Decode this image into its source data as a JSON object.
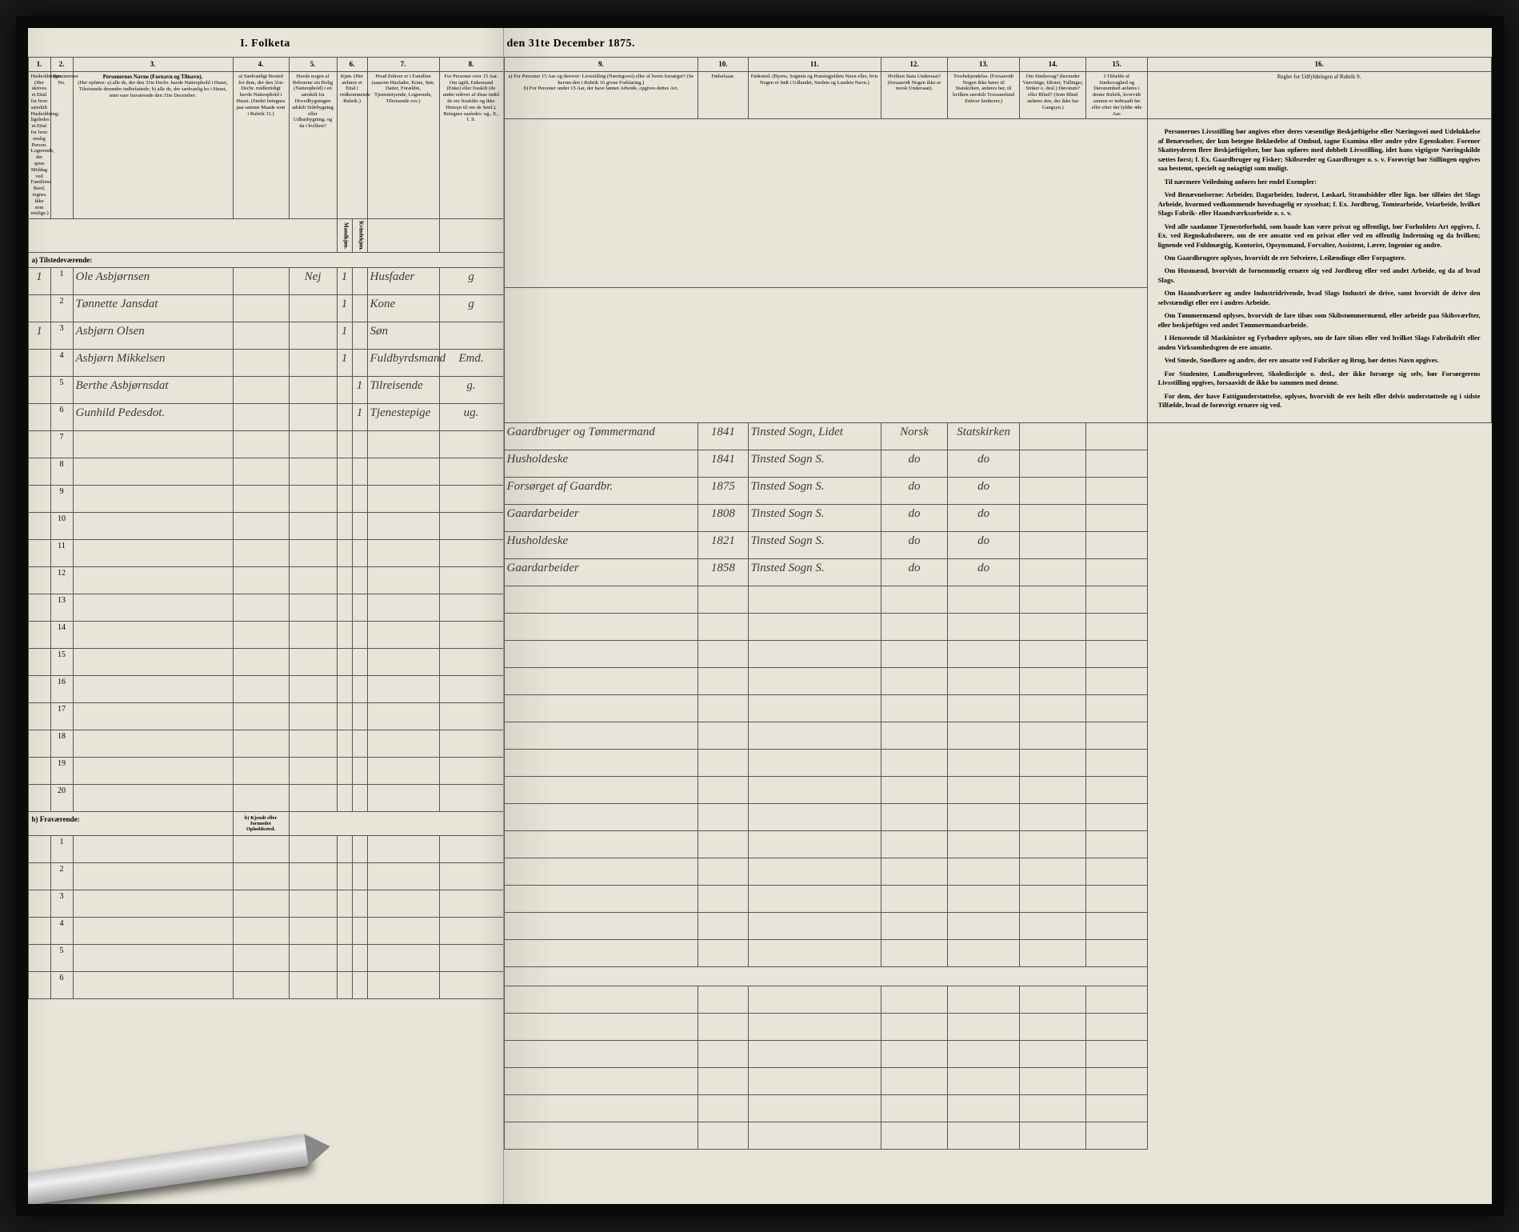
{
  "title_left": "I. Folketa",
  "title_right": "den 31te December 1875.",
  "columns": {
    "c1": "1.",
    "c2": "2.",
    "c3": "3.",
    "c4": "4.",
    "c5": "5.",
    "c6": "6.",
    "c7": "7.",
    "c8": "8.",
    "c9": "9.",
    "c10": "10.",
    "c11": "11.",
    "c12": "12.",
    "c13": "13.",
    "c14": "14.",
    "c15": "15.",
    "c16": "16."
  },
  "headers": {
    "h1": "Husholdninger. (Her skrives et Ettal for hver særskilt Husholdning; ligeledes et Ettal for hver enslig Person. Logerende, der spise Middag ved Familiens Bord, regnes ikke som enslige.)",
    "h2": "Personernes No.",
    "h3_title": "Personernes Navne (Fornavn og Tilnavn).",
    "h3_sub": "(Her opføres: a) alle de, der den 31te Decbr. havde Natteophold i Huset, Tilreisende derunder indbefattede; b) alle de, der sædvanlig bo i Huset, men vare fraværende den 31te December.",
    "h4": "a) Sædvanligt Bosted for dem, der den 31te Decbr. midlertidigt havde Natteophold i Huset. (Stedet betegnes paa samme Maade som i Rubrik 11.)",
    "h5": "Havde nogen af Beboerne sin Bolig (Natteophold) i en særskilt fra Hovedbygningen adskilt Sidebygning eller Udhusbygning; og da i hvilken?",
    "h6": "Kjøn. (Her anføres et Ettal i vedkommende Rubrik.)",
    "h6a": "Mandkjøn.",
    "h6b": "Kvindekjøn.",
    "h7": "Hvad Enhver er i Familien (saasom Husfader, Kone, Søn, Datter, Forældre, Tjenestetyende, Logerende, Tilreisende osv.)",
    "h8": "For Personer over 15 Aar. Om ugift, Enkemand (Enke) eller fraskilt (de under enhver af disse indtil de ere fraskilte og ikke Hensyn til om de Senl.). Betegnes saaledes: ug., E., f. S.",
    "h9_a": "a) For Personer 15 Aar og derover: Livsstilling (Næringsvei) eller af hvem forsørget? (Se herom den i Rubrik 16 givne Forklaring.)",
    "h9_b": "b) For Personer under 15 Aar, der have lønnet Arbeide, opgives dettes Art.",
    "h10": "Fødselsaar.",
    "h11": "Fødested. (Byens, Sognets og Præstegjeldets Navn eller, hvis Nogen er født i Udlandet, Stedets og Landets Navn.)",
    "h12": "Hvilken Stats Undersaat? (forsaavidt Nogen ikke er norsk Undersaat).",
    "h13": "Trosbekjendelse. (Forsaavidt Nogen ikke hører til Statskirken, anføres her, til hvilken særskilt Trossamfund Enhver henhorer.)",
    "h14": "Om Sindssvag? (herunder Vanvittige, Idioter, Tullinger, Sinker o. desl.) Døvstum? eller Blind? (Som Blind anføres den, der ikke har Gangsyn.)",
    "h15": "I Tilfælde af Sindssvaghed og Døvstumhed anføres i denne Rubrik, hvorvidt samme er indtraadt før eller efter det fyldte 4de Aar.",
    "h16": "Regler for Udfyldningen af Rubrik 9."
  },
  "section_a": "a) Tilstedeværende:",
  "section_b": "b) Fraværende:",
  "section_b_note": "b) Kjendt eller formodet Opholdssted.",
  "rows": [
    {
      "n": "1",
      "hush": "1",
      "name": "Ole Asbjørnsen",
      "c4": "",
      "c5": "Nej",
      "c6": "1",
      "c7": "Husfader",
      "c8": "g",
      "c9": "Gaardbruger og Tømmermand",
      "c10": "1841",
      "c11": "Tinsted Sogn, Lidet",
      "c12": "Norsk",
      "c13": "Statskirken",
      "c14": "",
      "c15": ""
    },
    {
      "n": "2",
      "hush": "",
      "name": "Tønnette Jansdat",
      "c4": "",
      "c5": "",
      "c6": "1",
      "c7": "Kone",
      "c8": "g",
      "c9": "Husholdeske",
      "c10": "1841",
      "c11": "Tinsted Sogn S.",
      "c12": "do",
      "c13": "do",
      "c14": "",
      "c15": ""
    },
    {
      "n": "3",
      "hush": "1",
      "name": "Asbjørn Olsen",
      "c4": "",
      "c5": "",
      "c6": "1",
      "c7": "Søn",
      "c8": "",
      "c9": "Forsørget af Gaardbr.",
      "c10": "1875",
      "c11": "Tinsted Sogn S.",
      "c12": "do",
      "c13": "do",
      "c14": "",
      "c15": ""
    },
    {
      "n": "4",
      "hush": "",
      "name": "Asbjørn Mikkelsen",
      "c4": "",
      "c5": "",
      "c6": "1",
      "c7": "Fuldbyrdsmand",
      "c8": "Emd.",
      "c9": "Gaardarbeider",
      "c10": "1808",
      "c11": "Tinsted Sogn S.",
      "c12": "do",
      "c13": "do",
      "c14": "",
      "c15": ""
    },
    {
      "n": "5",
      "hush": "",
      "name": "Berthe Asbjørnsdat",
      "c4": "",
      "c5": "",
      "c6": "1",
      "c7": "Tilreisende",
      "c8": "g.",
      "c9": "Husholdeske",
      "c10": "1821",
      "c11": "Tinsted Sogn S.",
      "c12": "do",
      "c13": "do",
      "c14": "",
      "c15": ""
    },
    {
      "n": "6",
      "hush": "",
      "name": "Gunhild Pedesdot.",
      "c4": "",
      "c5": "",
      "c6": "1",
      "c7": "Tjenestepige",
      "c8": "ug.",
      "c9": "Gaardarbeider",
      "c10": "1858",
      "c11": "Tinsted Sogn S.",
      "c12": "do",
      "c13": "do",
      "c14": "",
      "c15": ""
    }
  ],
  "empty_rows_a": [
    7,
    8,
    9,
    10,
    11,
    12,
    13,
    14,
    15,
    16,
    17,
    18,
    19,
    20
  ],
  "empty_rows_b": [
    1,
    2,
    3,
    4,
    5,
    6
  ],
  "instructions": {
    "p1_lead": "Personernes Livsstilling",
    "p1": " bør angives efter deres væsentlige Beskjæftigelse eller Næringsvei med Udelukkelse af Benævnelser, der kun betegne Beklædelse af Ombud, tagne Examina eller andre ydre Egenskaber. Forener Skatteyderen flere Beskjæftigelser, bør han opføres med dobbelt Livsstilling, idet hans vigtigste Næringskilde sættes først; f. Ex. Gaardbruger og Fisker; Skibsreder og Gaardbruger o. s. v. Forøvrigt bør Stillingen opgives saa bestemt, specielt og nøiagtigt som muligt.",
    "p2": "Til nærmere Veiledning anføres her endel Exempler:",
    "p3": "Ved Benævnelserne: Arbeider, Dagarbeider, Inderst, Løskarl, Strandsidder eller lign. bør tilføies det Slags Arbeide, hvormed vedkommende hovedsagelig er sysselsat; f. Ex. Jordbrug, Tomtearbeide, Veiarbeide, hvilket Slags Fabrik- eller Haandværksarbeide o. s. v.",
    "p4": "Ved alle saadanne Tjenesteforhold, som baade kan være privat og offentligt, bør Forholdets Art opgives, f. Ex. ved Regnskabsførere, om de ere ansatte ved en privat eller ved en offentlig Indretning og da hvilken; lignende ved Fuldmægtig, Kontorist, Opsynsmand, Forvalter, Assistent, Lærer, Ingeniør og andre.",
    "p5": "Om Gaardbrugere oplyses, hvorvidt de ere Selveiere, Leilændinge eller Forpagtere.",
    "p6": "Om Husmænd, hvorvidt de fornemmelig ernære sig ved Jordbrug eller ved andet Arbeide, og da af hvad Slags.",
    "p7": "Om Haandværkere og andre Industridrivende, hvad Slags Industri de drive, samt hvorvidt de drive den selvstændigt eller ere i andres Arbeide.",
    "p8": "Om Tømmermænd oplyses, hvorvidt de fare tilsøs som Skibstømmermænd, eller arbeide paa Skibsværfter, eller beskjæftiges ved andet Tømmermandsarbeide.",
    "p9": "I Henseende til Maskinister og Fyrbødere oplyses, om de fare tilsøs eller ved hvilket Slags Fabrikdrift eller anden Virksomhedsgren de ere ansatte.",
    "p10": "Ved Smede, Snedkere og andre, der ere ansatte ved Fabriker og Brug, bør dettes Navn opgives.",
    "p11": "For Studenter, Landbrugselever, Skoledisciple o. desl., der ikke forsørge sig selv, bør Forsørgerens Livsstilling opgives, forsaavidt de ikke bo sammen med denne.",
    "p12": "For dem, der have Fattigunderstøttelse, oplyses, hvorvidt de ere heilt eller delvis understøttede og i sidste Tilfælde, hvad de forøvrigt ernære sig ved."
  }
}
